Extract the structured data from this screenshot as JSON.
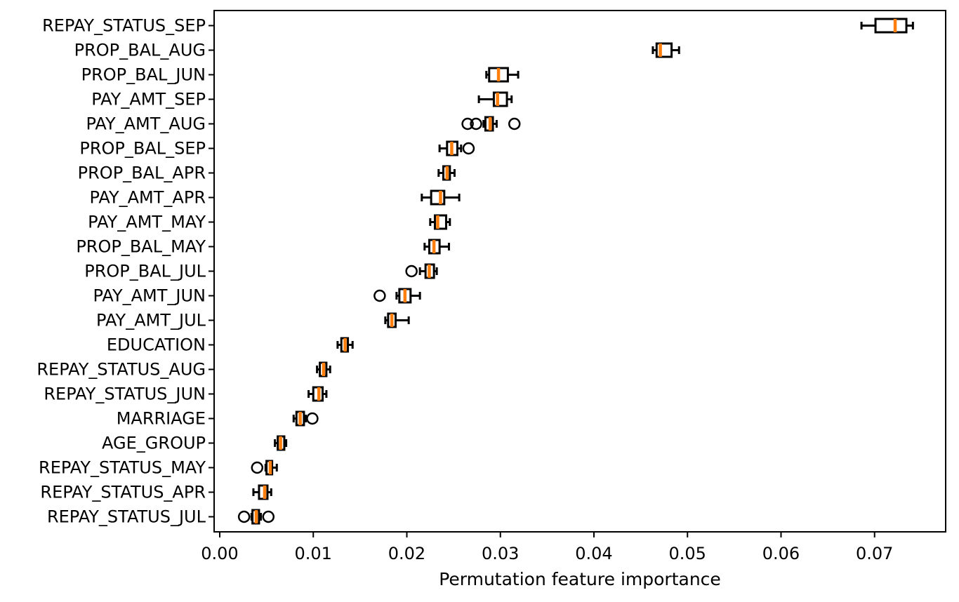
{
  "chart_data": {
    "type": "boxplot",
    "orientation": "horizontal",
    "title": "",
    "xlabel": "Permutation feature importance",
    "ylabel": "",
    "xlim": [
      -0.0006,
      0.0776
    ],
    "xtick_labels": [
      "0.00",
      "0.01",
      "0.02",
      "0.03",
      "0.04",
      "0.05",
      "0.06",
      "0.07"
    ],
    "xtick_values": [
      0.0,
      0.01,
      0.02,
      0.03,
      0.04,
      0.05,
      0.06,
      0.07
    ],
    "grid": "off",
    "legend": "none",
    "colors": {
      "box_stroke": "#000000",
      "median": "#ff7f0e",
      "background": "#ffffff",
      "text": "#000000"
    },
    "features": [
      {
        "name": "REPAY_STATUS_SEP",
        "whislo": 0.0686,
        "q1": 0.0701,
        "med": 0.0722,
        "q3": 0.0734,
        "whishi": 0.0741,
        "fliers": []
      },
      {
        "name": "PROP_BAL_AUG",
        "whislo": 0.0463,
        "q1": 0.0467,
        "med": 0.0471,
        "q3": 0.0483,
        "whishi": 0.0491,
        "fliers": []
      },
      {
        "name": "PROP_BAL_JUN",
        "whislo": 0.0285,
        "q1": 0.0288,
        "med": 0.0298,
        "q3": 0.0308,
        "whishi": 0.0319,
        "fliers": []
      },
      {
        "name": "PAY_AMT_SEP",
        "whislo": 0.0277,
        "q1": 0.0293,
        "med": 0.0297,
        "q3": 0.0307,
        "whishi": 0.0312,
        "fliers": []
      },
      {
        "name": "PAY_AMT_AUG",
        "whislo": 0.0282,
        "q1": 0.0284,
        "med": 0.0289,
        "q3": 0.0292,
        "whishi": 0.0296,
        "fliers": [
          0.0265,
          0.0274,
          0.0315
        ]
      },
      {
        "name": "PROP_BAL_SEP",
        "whislo": 0.0235,
        "q1": 0.0243,
        "med": 0.0248,
        "q3": 0.0254,
        "whishi": 0.0258,
        "fliers": [
          0.0266
        ]
      },
      {
        "name": "PROP_BAL_APR",
        "whislo": 0.0234,
        "q1": 0.0239,
        "med": 0.0243,
        "q3": 0.0246,
        "whishi": 0.0251,
        "fliers": []
      },
      {
        "name": "PAY_AMT_APR",
        "whislo": 0.0216,
        "q1": 0.0226,
        "med": 0.0236,
        "q3": 0.024,
        "whishi": 0.0256,
        "fliers": []
      },
      {
        "name": "PAY_AMT_MAY",
        "whislo": 0.0225,
        "q1": 0.023,
        "med": 0.0233,
        "q3": 0.0242,
        "whishi": 0.0246,
        "fliers": []
      },
      {
        "name": "PROP_BAL_MAY",
        "whislo": 0.0219,
        "q1": 0.0224,
        "med": 0.0229,
        "q3": 0.0235,
        "whishi": 0.0245,
        "fliers": []
      },
      {
        "name": "PROP_BAL_JUL",
        "whislo": 0.0214,
        "q1": 0.022,
        "med": 0.0224,
        "q3": 0.0229,
        "whishi": 0.0232,
        "fliers": [
          0.0205
        ]
      },
      {
        "name": "PAY_AMT_JUN",
        "whislo": 0.0189,
        "q1": 0.0192,
        "med": 0.0198,
        "q3": 0.0204,
        "whishi": 0.0214,
        "fliers": [
          0.0171
        ]
      },
      {
        "name": "PAY_AMT_JUL",
        "whislo": 0.0177,
        "q1": 0.018,
        "med": 0.0184,
        "q3": 0.0188,
        "whishi": 0.0202,
        "fliers": []
      },
      {
        "name": "EDUCATION",
        "whislo": 0.0126,
        "q1": 0.013,
        "med": 0.0134,
        "q3": 0.0137,
        "whishi": 0.0142,
        "fliers": []
      },
      {
        "name": "REPAY_STATUS_AUG",
        "whislo": 0.0104,
        "q1": 0.0107,
        "med": 0.0111,
        "q3": 0.0114,
        "whishi": 0.0118,
        "fliers": []
      },
      {
        "name": "REPAY_STATUS_JUN",
        "whislo": 0.0095,
        "q1": 0.01,
        "med": 0.0106,
        "q3": 0.011,
        "whishi": 0.0114,
        "fliers": []
      },
      {
        "name": "MARRIAGE",
        "whislo": 0.0079,
        "q1": 0.0082,
        "med": 0.0086,
        "q3": 0.009,
        "whishi": 0.0092,
        "fliers": [
          0.0099
        ]
      },
      {
        "name": "AGE_GROUP",
        "whislo": 0.0059,
        "q1": 0.0062,
        "med": 0.0065,
        "q3": 0.0069,
        "whishi": 0.0071,
        "fliers": []
      },
      {
        "name": "REPAY_STATUS_MAY",
        "whislo": 0.0049,
        "q1": 0.005,
        "med": 0.0054,
        "q3": 0.0056,
        "whishi": 0.0061,
        "fliers": [
          0.004
        ]
      },
      {
        "name": "REPAY_STATUS_APR",
        "whislo": 0.0036,
        "q1": 0.0042,
        "med": 0.0048,
        "q3": 0.0051,
        "whishi": 0.0055,
        "fliers": []
      },
      {
        "name": "REPAY_STATUS_JUL",
        "whislo": 0.0034,
        "q1": 0.0035,
        "med": 0.0039,
        "q3": 0.0042,
        "whishi": 0.0044,
        "fliers": [
          0.0026,
          0.0052
        ]
      }
    ]
  }
}
